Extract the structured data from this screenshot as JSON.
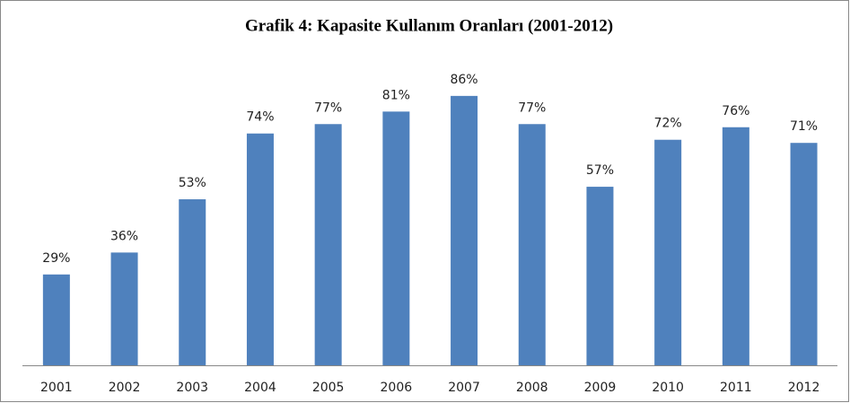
{
  "chart_data": {
    "type": "bar",
    "title": "Grafik 4:  Kapasite Kullanım Oranları (2001-2012)",
    "categories": [
      "2001",
      "2002",
      "2003",
      "2004",
      "2005",
      "2006",
      "2007",
      "2008",
      "2009",
      "2010",
      "2011",
      "2012"
    ],
    "values": [
      29,
      36,
      53,
      74,
      77,
      81,
      86,
      77,
      57,
      72,
      76,
      71
    ],
    "value_labels": [
      "29%",
      "36%",
      "53%",
      "74%",
      "77%",
      "81%",
      "86%",
      "77%",
      "57%",
      "72%",
      "76%",
      "71%"
    ],
    "color": "#4f81bd"
  }
}
